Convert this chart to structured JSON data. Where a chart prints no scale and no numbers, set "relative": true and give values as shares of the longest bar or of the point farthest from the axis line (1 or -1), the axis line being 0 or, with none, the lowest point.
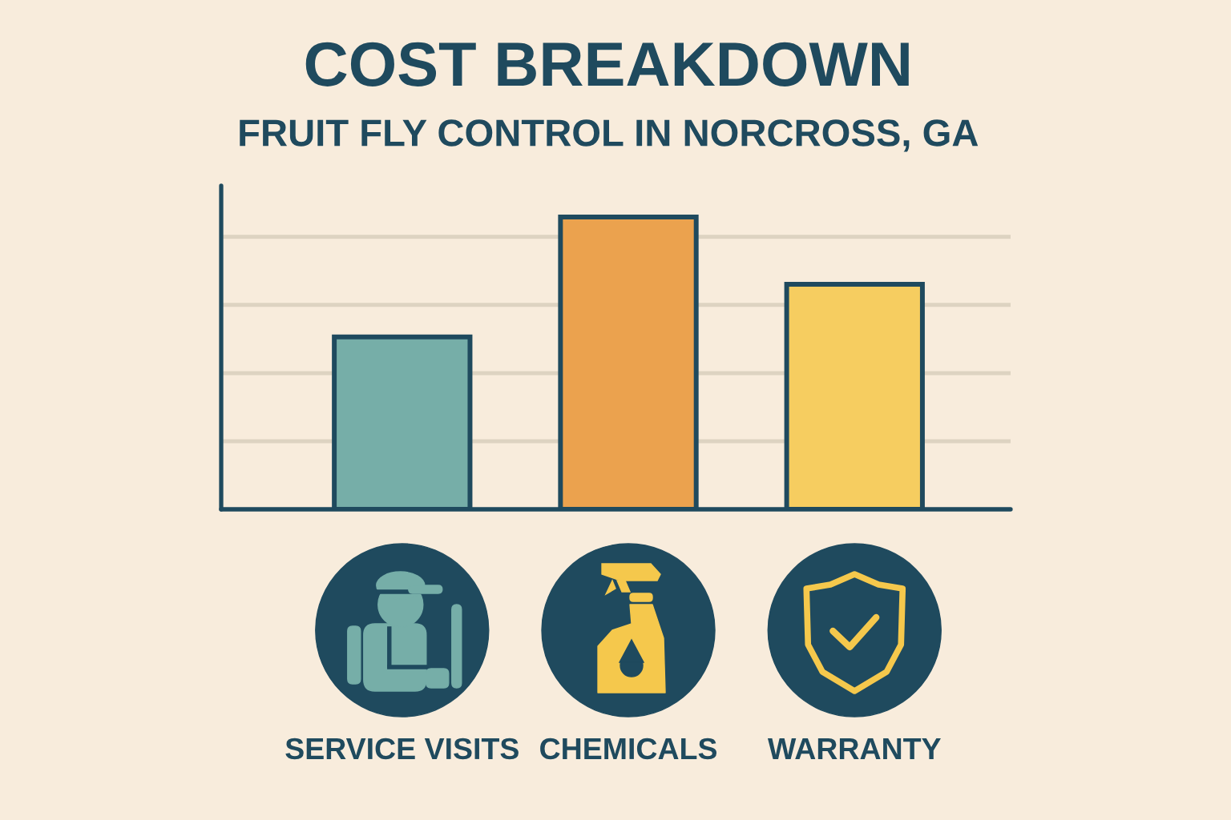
{
  "chart_data": {
    "type": "bar",
    "title": "COST BREAKDOWN",
    "subtitle": "FRUIT FLY CONTROL IN NORCROSS, GA",
    "categories": [
      "SERVICE VISITS",
      "CHEMICALS",
      "WARRANTY"
    ],
    "values": [
      0.59,
      1,
      0.77
    ],
    "colors": [
      "#76aea8",
      "#eba24e",
      "#f6cd60"
    ],
    "relative": true,
    "grid": "y",
    "tick_labels": "x"
  }
}
